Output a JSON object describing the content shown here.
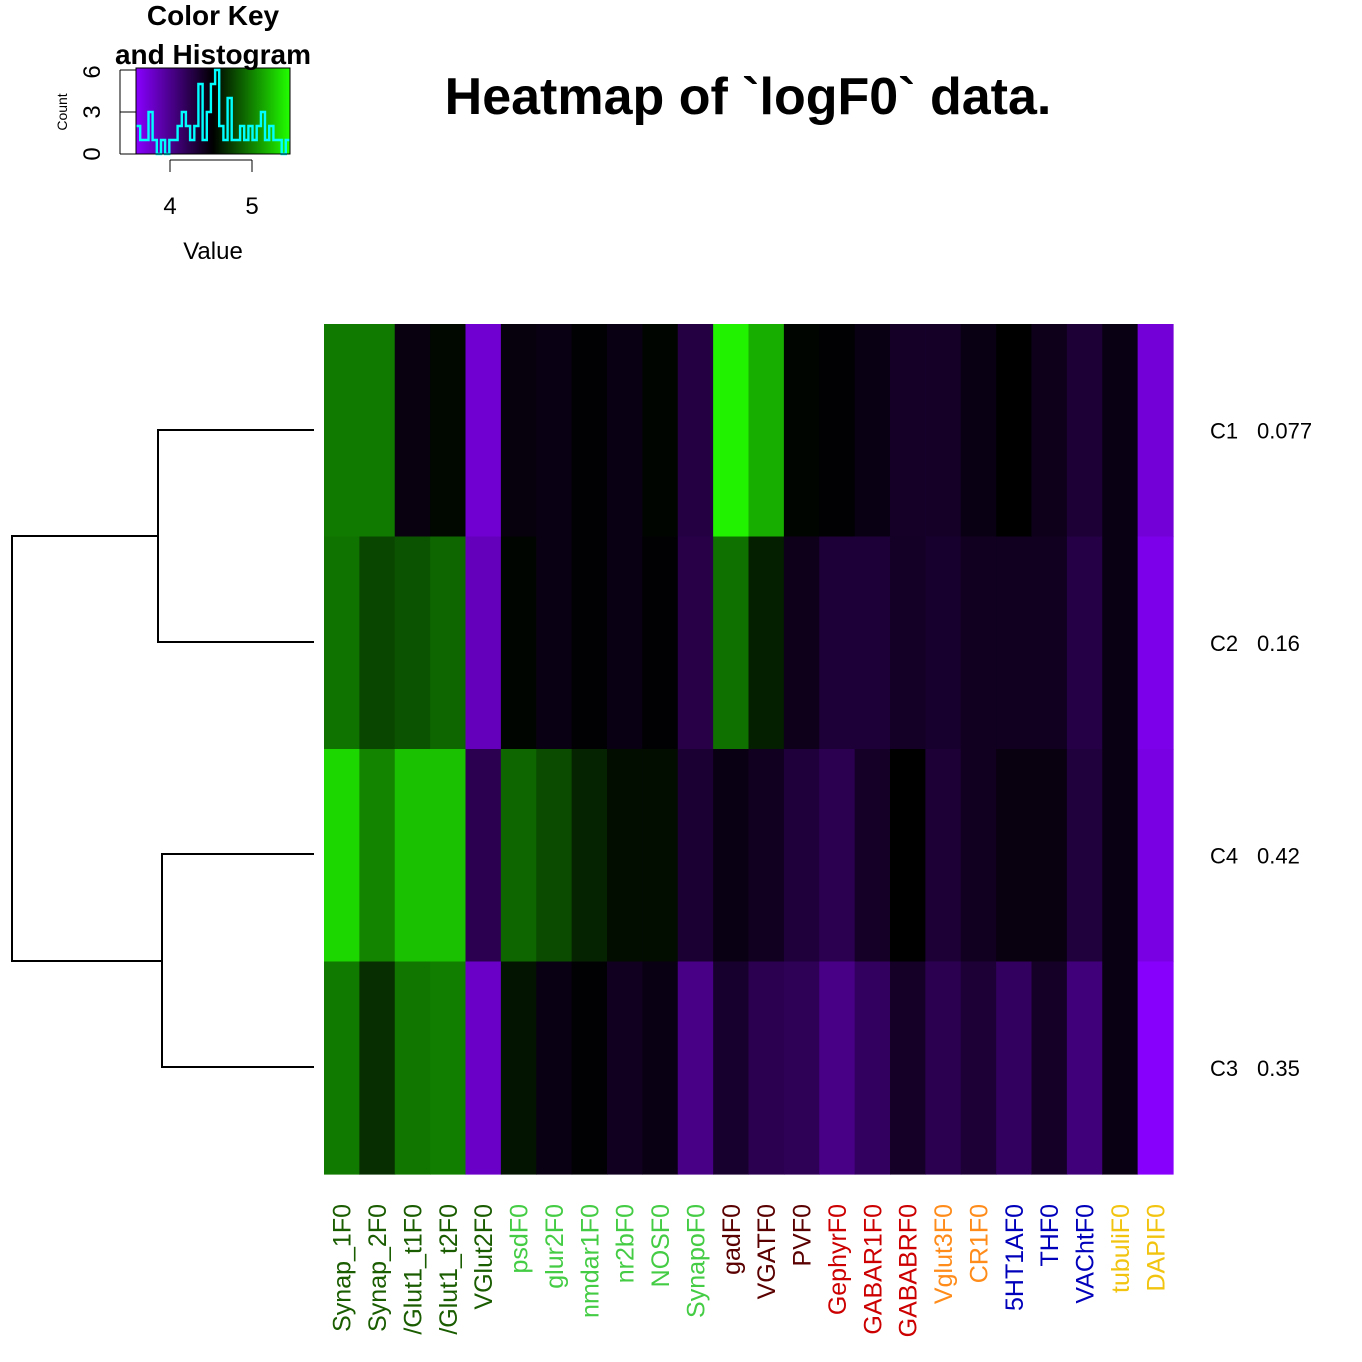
{
  "chart_data": {
    "type": "heatmap",
    "title": "Heatmap of `logF0` data.",
    "columns": [
      {
        "label": "Synap_1F0",
        "color": "#1a5c00"
      },
      {
        "label": "Synap_2F0",
        "color": "#1a5c00"
      },
      {
        "label": "/Glut1_t1F0",
        "color": "#1a5c00"
      },
      {
        "label": "/Glut1_t2F0",
        "color": "#1a5c00"
      },
      {
        "label": "VGlut2F0",
        "color": "#1a5c00"
      },
      {
        "label": "psdF0",
        "color": "#44cc44"
      },
      {
        "label": "glur2F0",
        "color": "#44cc44"
      },
      {
        "label": "nmdar1F0",
        "color": "#44cc44"
      },
      {
        "label": "nr2bF0",
        "color": "#44cc44"
      },
      {
        "label": "NOSF0",
        "color": "#44cc44"
      },
      {
        "label": "SynapoF0",
        "color": "#44cc44"
      },
      {
        "label": "gadF0",
        "color": "#5a0000"
      },
      {
        "label": "VGATF0",
        "color": "#5a0000"
      },
      {
        "label": "PVF0",
        "color": "#5a0000"
      },
      {
        "label": "GephyrF0",
        "color": "#cc0000"
      },
      {
        "label": "GABAR1F0",
        "color": "#cc0000"
      },
      {
        "label": "GABABRF0",
        "color": "#cc0000"
      },
      {
        "label": "Vglut3F0",
        "color": "#ff8c1a"
      },
      {
        "label": "CR1F0",
        "color": "#ff8c1a"
      },
      {
        "label": "5HT1AF0",
        "color": "#0000bb"
      },
      {
        "label": "THF0",
        "color": "#0000bb"
      },
      {
        "label": "VAChtF0",
        "color": "#0000bb"
      },
      {
        "label": "tubuliF0",
        "color": "#f2c40f"
      },
      {
        "label": "DAPIF0",
        "color": "#f2c40f"
      }
    ],
    "rows": [
      {
        "label": "C1",
        "value": "0.077"
      },
      {
        "label": "C2",
        "value": "0.16"
      },
      {
        "label": "C4",
        "value": "0.42"
      },
      {
        "label": "C3",
        "value": "0.35"
      }
    ],
    "color_scale": {
      "low": "#8800ff",
      "mid": "#000000",
      "high": "#22ff00",
      "vmin": 3.55,
      "vmax": 5.45
    },
    "values": [
      [
        4.95,
        4.95,
        4.44,
        4.53,
        3.72,
        4.45,
        4.43,
        4.49,
        4.43,
        4.52,
        4.25,
        5.4,
        5.15,
        4.52,
        4.49,
        4.43,
        4.35,
        4.35,
        4.43,
        4.5,
        4.4,
        4.3,
        4.43,
        3.7
      ],
      [
        4.93,
        4.76,
        4.81,
        4.88,
        3.8,
        4.52,
        4.43,
        4.49,
        4.43,
        4.49,
        4.23,
        4.92,
        4.61,
        4.4,
        4.29,
        4.29,
        4.36,
        4.33,
        4.38,
        4.38,
        4.38,
        4.24,
        4.43,
        3.63
      ],
      [
        5.3,
        4.99,
        5.22,
        5.22,
        4.2,
        4.88,
        4.78,
        4.63,
        4.55,
        4.55,
        4.31,
        4.43,
        4.38,
        4.28,
        4.2,
        4.35,
        4.5,
        4.3,
        4.38,
        4.44,
        4.44,
        4.27,
        4.43,
        3.65
      ],
      [
        4.95,
        4.67,
        4.94,
        4.97,
        3.76,
        4.58,
        4.43,
        4.49,
        4.38,
        4.43,
        4.0,
        4.33,
        4.2,
        4.18,
        4.0,
        4.15,
        4.35,
        4.2,
        4.3,
        4.15,
        4.35,
        4.05,
        4.43,
        3.56
      ]
    ]
  },
  "color_key": {
    "title_line1": "Color Key",
    "title_line2": "and Histogram",
    "xlabel": "Value",
    "ylabel": "Count",
    "x_ticks": [
      "4",
      "5"
    ],
    "y_ticks": [
      "0",
      "3",
      "6"
    ],
    "line_color": "#00ffff",
    "histogram": [
      2,
      1,
      1,
      3,
      1,
      0,
      1,
      0,
      1,
      1,
      2,
      3,
      2,
      1,
      2,
      5,
      1,
      3,
      5,
      6,
      2,
      1,
      4,
      1,
      1,
      2,
      1,
      2,
      1,
      2,
      3,
      1,
      2,
      1,
      1,
      0,
      1
    ]
  }
}
